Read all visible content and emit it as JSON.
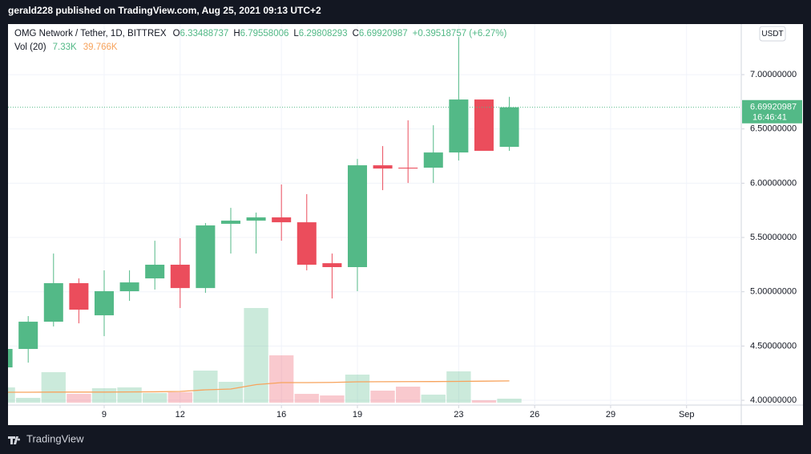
{
  "header": {
    "title": "gerald228 published on TradingView.com, Aug 25, 2021 09:13 UTC+2"
  },
  "footer": {
    "brand": "TradingView"
  },
  "chart_data": {
    "type": "candlestick",
    "symbol": "OMG Network / Tether, 1D, BITTREX",
    "ohlc_labels": [
      "O",
      "H",
      "L",
      "C"
    ],
    "change": "+0.39518757 (+6.27%)",
    "currency": "USDT",
    "countdown": "16:46:41",
    "up_color": "#53b987",
    "down_color": "#eb4d5c",
    "x": [
      5,
      6,
      7,
      8,
      9,
      10,
      11,
      12,
      13,
      14,
      15,
      16,
      17,
      18,
      19,
      20,
      21,
      22,
      23,
      24,
      25
    ],
    "open": [
      4.303,
      4.473,
      4.724,
      5.079,
      4.783,
      5.005,
      5.123,
      5.249,
      5.034,
      5.626,
      5.655,
      5.685,
      5.64,
      5.263,
      5.227,
      6.165,
      6.143,
      6.143,
      6.283,
      6.771,
      6.33488737
    ],
    "high": [
      4.52,
      4.776,
      5.352,
      5.123,
      5.197,
      5.197,
      5.47,
      5.493,
      5.633,
      5.773,
      5.729,
      5.988,
      5.899,
      5.352,
      6.224,
      6.342,
      6.579,
      6.534,
      7.347,
      6.771,
      6.79558006
    ],
    "low": [
      4.27,
      4.347,
      4.68,
      4.709,
      4.591,
      4.916,
      5.02,
      4.85,
      4.99,
      5.352,
      5.352,
      5.47,
      5.197,
      4.938,
      5.005,
      5.936,
      6.002,
      6.002,
      6.209,
      6.298,
      6.29808293
    ],
    "close": [
      4.473,
      4.724,
      5.079,
      4.835,
      5.005,
      5.086,
      5.249,
      5.034,
      5.611,
      5.655,
      5.685,
      5.64,
      5.249,
      5.227,
      6.165,
      6.135,
      6.135,
      6.283,
      6.771,
      6.298,
      6.69920987
    ],
    "volume": {
      "name": "Vol (20)",
      "values": [
        27.9,
        8.8,
        55.7,
        16.1,
        26.4,
        27.9,
        17.6,
        19.1,
        58.6,
        38.1,
        173,
        86.5,
        16.1,
        13.2,
        51.3,
        22,
        29.3,
        14.7,
        57.2,
        4.4,
        7.33
      ],
      "last_label": "7.33K",
      "ma_values": [
        19.1,
        19.1,
        19.3,
        19.3,
        19.3,
        19.6,
        19.9,
        20.5,
        23.5,
        24.9,
        33.0,
        36.7,
        36.7,
        37.0,
        38.1,
        38.3,
        38.5,
        38.6,
        38.9,
        39.3,
        39.766
      ],
      "ma_last_label": "39.766K",
      "ma_color": "#f7a35c"
    },
    "xlim": [
      5.2025,
      34.16
    ],
    "xticks": [
      9,
      12,
      16,
      19,
      23,
      26,
      29,
      {
        "value": 32,
        "label": "Sep"
      }
    ],
    "ylim": [
      3.956,
      7.466
    ],
    "yticks": [
      {
        "value": 4,
        "label": "4.00000000"
      },
      {
        "value": 4.5,
        "label": "4.50000000"
      },
      {
        "value": 5,
        "label": "5.00000000"
      },
      {
        "value": 5.5,
        "label": "5.50000000"
      },
      {
        "value": 6,
        "label": "6.00000000"
      },
      {
        "value": 6.5,
        "label": "6.50000000"
      },
      {
        "value": 7,
        "label": "7.00000000"
      }
    ],
    "grid": true
  }
}
